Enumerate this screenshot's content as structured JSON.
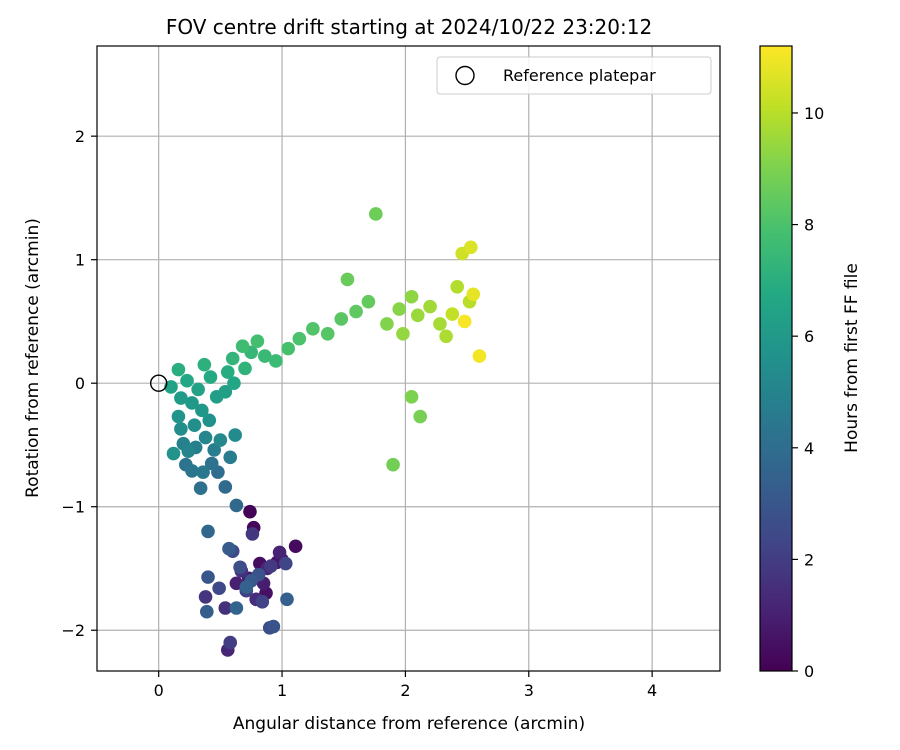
{
  "chart_data": {
    "type": "scatter",
    "title": "FOV centre drift starting at 2024/10/22 23:20:12",
    "xlabel": "Angular distance from reference (arcmin)",
    "ylabel": "Rotation from reference (arcmin)",
    "xlim": [
      -0.5,
      4.55
    ],
    "ylim": [
      -2.33,
      2.73
    ],
    "xticks": [
      0,
      1,
      2,
      3,
      4
    ],
    "yticks": [
      -2,
      -1,
      0,
      1,
      2
    ],
    "xtick_labels": [
      "0",
      "1",
      "2",
      "3",
      "4"
    ],
    "ytick_labels": [
      "−2",
      "−1",
      "0",
      "1",
      "2"
    ],
    "grid": true,
    "legend": {
      "position": "top-right",
      "entries": [
        {
          "label": "Reference platepar",
          "marker": "open-circle",
          "x": 0,
          "y": 0
        }
      ]
    },
    "colorbar": {
      "label": "Hours from first FF file",
      "colormap": "viridis",
      "range": [
        0,
        11.2
      ],
      "ticks": [
        0,
        2,
        4,
        6,
        8,
        10
      ],
      "tick_labels": [
        "0",
        "2",
        "4",
        "6",
        "8",
        "10"
      ]
    },
    "series": [
      {
        "color_by": "hours",
        "points": [
          {
            "x": 0.74,
            "y": -1.04,
            "c": 0.1
          },
          {
            "x": 0.77,
            "y": -1.17,
            "c": 0.2
          },
          {
            "x": 1.11,
            "y": -1.32,
            "c": 0.3
          },
          {
            "x": 0.82,
            "y": -1.46,
            "c": 0.4
          },
          {
            "x": 0.87,
            "y": -1.7,
            "c": 0.5
          },
          {
            "x": 0.96,
            "y": -1.45,
            "c": 0.6
          },
          {
            "x": 1.0,
            "y": -1.43,
            "c": 0.7
          },
          {
            "x": 0.73,
            "y": -1.58,
            "c": 0.8
          },
          {
            "x": 0.85,
            "y": -1.62,
            "c": 0.9
          },
          {
            "x": 0.63,
            "y": -1.62,
            "c": 1.0
          },
          {
            "x": 0.98,
            "y": -1.37,
            "c": 1.1
          },
          {
            "x": 0.56,
            "y": -2.16,
            "c": 1.2
          },
          {
            "x": 0.88,
            "y": -1.5,
            "c": 1.3
          },
          {
            "x": 0.79,
            "y": -1.75,
            "c": 1.4
          },
          {
            "x": 0.54,
            "y": -1.82,
            "c": 1.5
          },
          {
            "x": 0.67,
            "y": -1.52,
            "c": 1.6
          },
          {
            "x": 0.38,
            "y": -1.73,
            "c": 1.7
          },
          {
            "x": 0.76,
            "y": -1.22,
            "c": 1.8
          },
          {
            "x": 0.91,
            "y": -1.48,
            "c": 1.9
          },
          {
            "x": 0.58,
            "y": -2.1,
            "c": 2.0
          },
          {
            "x": 0.71,
            "y": -1.68,
            "c": 2.1
          },
          {
            "x": 0.84,
            "y": -1.77,
            "c": 2.2
          },
          {
            "x": 1.03,
            "y": -1.46,
            "c": 2.3
          },
          {
            "x": 0.49,
            "y": -1.66,
            "c": 2.4
          },
          {
            "x": 0.6,
            "y": -1.36,
            "c": 2.5
          },
          {
            "x": 0.9,
            "y": -1.98,
            "c": 2.6
          },
          {
            "x": 0.66,
            "y": -1.49,
            "c": 2.7
          },
          {
            "x": 0.81,
            "y": -1.55,
            "c": 2.8
          },
          {
            "x": 0.93,
            "y": -1.97,
            "c": 2.9
          },
          {
            "x": 0.4,
            "y": -1.57,
            "c": 3.0
          },
          {
            "x": 0.75,
            "y": -1.6,
            "c": 3.1
          },
          {
            "x": 0.57,
            "y": -1.34,
            "c": 3.2
          },
          {
            "x": 0.39,
            "y": -1.85,
            "c": 3.3
          },
          {
            "x": 1.04,
            "y": -1.75,
            "c": 3.4
          },
          {
            "x": 0.71,
            "y": -1.65,
            "c": 3.5
          },
          {
            "x": 0.63,
            "y": -1.82,
            "c": 3.6
          },
          {
            "x": 0.4,
            "y": -1.2,
            "c": 3.7
          },
          {
            "x": 0.63,
            "y": -0.99,
            "c": 3.8
          },
          {
            "x": 0.54,
            "y": -0.84,
            "c": 3.9
          },
          {
            "x": 0.48,
            "y": -0.72,
            "c": 4.0
          },
          {
            "x": 0.34,
            "y": -0.85,
            "c": 4.1
          },
          {
            "x": 0.43,
            "y": -0.65,
            "c": 4.2
          },
          {
            "x": 0.22,
            "y": -0.66,
            "c": 4.3
          },
          {
            "x": 0.27,
            "y": -0.71,
            "c": 4.4
          },
          {
            "x": 0.36,
            "y": -0.72,
            "c": 4.5
          },
          {
            "x": 0.58,
            "y": -0.6,
            "c": 4.6
          },
          {
            "x": 0.45,
            "y": -0.54,
            "c": 4.7
          },
          {
            "x": 0.3,
            "y": -0.52,
            "c": 4.8
          },
          {
            "x": 0.2,
            "y": -0.49,
            "c": 4.9
          },
          {
            "x": 0.24,
            "y": -0.55,
            "c": 5.0
          },
          {
            "x": 0.38,
            "y": -0.44,
            "c": 5.1
          },
          {
            "x": 0.5,
            "y": -0.46,
            "c": 5.2
          },
          {
            "x": 0.62,
            "y": -0.42,
            "c": 5.3
          },
          {
            "x": 0.18,
            "y": -0.37,
            "c": 5.4
          },
          {
            "x": 0.29,
            "y": -0.34,
            "c": 5.5
          },
          {
            "x": 0.41,
            "y": -0.3,
            "c": 5.6
          },
          {
            "x": 0.12,
            "y": -0.57,
            "c": 5.7
          },
          {
            "x": 0.16,
            "y": -0.27,
            "c": 5.8
          },
          {
            "x": 0.35,
            "y": -0.22,
            "c": 5.9
          },
          {
            "x": 0.27,
            "y": -0.16,
            "c": 6.0
          },
          {
            "x": 0.18,
            "y": -0.12,
            "c": 6.1
          },
          {
            "x": 0.47,
            "y": -0.11,
            "c": 6.2
          },
          {
            "x": 0.54,
            "y": -0.07,
            "c": 6.3
          },
          {
            "x": 0.32,
            "y": -0.05,
            "c": 6.4
          },
          {
            "x": 0.1,
            "y": -0.03,
            "c": 6.5
          },
          {
            "x": 0.61,
            "y": 0.0,
            "c": 6.6
          },
          {
            "x": 0.23,
            "y": 0.02,
            "c": 6.7
          },
          {
            "x": 0.42,
            "y": 0.05,
            "c": 6.8
          },
          {
            "x": 0.56,
            "y": 0.09,
            "c": 6.9
          },
          {
            "x": 0.16,
            "y": 0.11,
            "c": 7.0
          },
          {
            "x": 0.37,
            "y": 0.15,
            "c": 7.1
          },
          {
            "x": 0.7,
            "y": 0.12,
            "c": 7.2
          },
          {
            "x": 0.6,
            "y": 0.2,
            "c": 7.3
          },
          {
            "x": 0.75,
            "y": 0.25,
            "c": 7.4
          },
          {
            "x": 0.86,
            "y": 0.22,
            "c": 7.5
          },
          {
            "x": 0.95,
            "y": 0.18,
            "c": 7.6
          },
          {
            "x": 0.68,
            "y": 0.3,
            "c": 7.7
          },
          {
            "x": 0.8,
            "y": 0.34,
            "c": 7.8
          },
          {
            "x": 1.05,
            "y": 0.28,
            "c": 7.9
          },
          {
            "x": 1.14,
            "y": 0.36,
            "c": 8.0
          },
          {
            "x": 1.25,
            "y": 0.44,
            "c": 8.1
          },
          {
            "x": 1.37,
            "y": 0.4,
            "c": 8.2
          },
          {
            "x": 1.48,
            "y": 0.52,
            "c": 8.3
          },
          {
            "x": 1.6,
            "y": 0.58,
            "c": 8.4
          },
          {
            "x": 1.7,
            "y": 0.66,
            "c": 8.5
          },
          {
            "x": 1.53,
            "y": 0.84,
            "c": 8.6
          },
          {
            "x": 1.76,
            "y": 1.37,
            "c": 8.7
          },
          {
            "x": 1.9,
            "y": -0.66,
            "c": 8.8
          },
          {
            "x": 2.12,
            "y": -0.27,
            "c": 8.9
          },
          {
            "x": 2.05,
            "y": -0.11,
            "c": 9.0
          },
          {
            "x": 1.85,
            "y": 0.48,
            "c": 9.1
          },
          {
            "x": 1.95,
            "y": 0.6,
            "c": 9.2
          },
          {
            "x": 2.05,
            "y": 0.7,
            "c": 9.3
          },
          {
            "x": 1.98,
            "y": 0.4,
            "c": 9.4
          },
          {
            "x": 2.1,
            "y": 0.55,
            "c": 9.5
          },
          {
            "x": 2.2,
            "y": 0.62,
            "c": 9.6
          },
          {
            "x": 2.28,
            "y": 0.48,
            "c": 9.7
          },
          {
            "x": 2.33,
            "y": 0.38,
            "c": 9.8
          },
          {
            "x": 2.42,
            "y": 0.78,
            "c": 9.9
          },
          {
            "x": 2.52,
            "y": 0.66,
            "c": 10.0
          },
          {
            "x": 2.38,
            "y": 0.56,
            "c": 10.2
          },
          {
            "x": 2.46,
            "y": 1.05,
            "c": 10.4
          },
          {
            "x": 2.53,
            "y": 1.1,
            "c": 10.6
          },
          {
            "x": 2.55,
            "y": 0.72,
            "c": 10.8
          },
          {
            "x": 2.6,
            "y": 0.22,
            "c": 11.0
          },
          {
            "x": 2.48,
            "y": 0.5,
            "c": 11.1
          }
        ]
      }
    ]
  }
}
